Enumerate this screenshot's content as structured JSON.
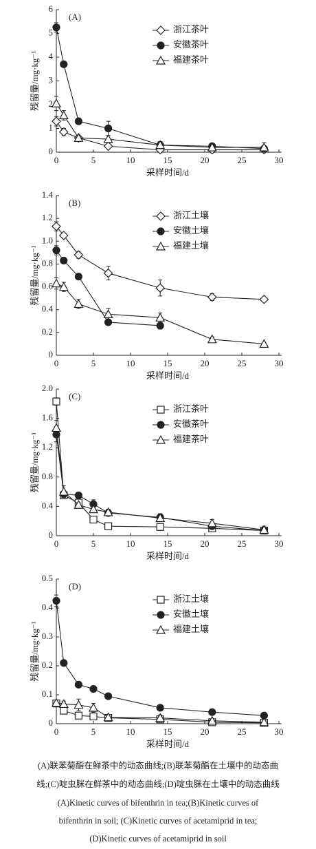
{
  "chart_data": [
    {
      "type": "line",
      "panel_label": "(A)",
      "xlabel": "采样时间/d",
      "ylabel": "残留量/mg·kg⁻¹",
      "x": [
        0,
        1,
        3,
        7,
        14,
        21,
        28
      ],
      "xlim": [
        0,
        30
      ],
      "xticks": [
        0,
        5,
        10,
        15,
        20,
        25,
        30
      ],
      "ylim": [
        0,
        6
      ],
      "yticks": [
        0,
        1,
        2,
        3,
        4,
        5,
        6
      ],
      "series": [
        {
          "name": "浙江茶叶",
          "marker": "diamond",
          "color": "#222222",
          "values": [
            1.3,
            0.85,
            0.6,
            0.25,
            0.1,
            0.1,
            0.1
          ],
          "errors": [
            0.2,
            0.15,
            0.1,
            0.1,
            0.05,
            0.05,
            0.05
          ]
        },
        {
          "name": "安徽茶叶",
          "marker": "circle",
          "color": "#222222",
          "values": [
            5.25,
            3.7,
            1.3,
            1.0,
            0.3,
            0.25,
            0.15
          ],
          "errors": [
            0.2,
            0.1,
            0.1,
            0.3,
            0.15,
            0.1,
            0.1
          ]
        },
        {
          "name": "福建茶叶",
          "marker": "triangle",
          "color": "#222222",
          "values": [
            2.05,
            1.55,
            0.6,
            0.55,
            0.3,
            0.2,
            0.2
          ],
          "errors": [
            0.3,
            0.2,
            0.1,
            0.15,
            0.1,
            0.1,
            0.2
          ]
        }
      ]
    },
    {
      "type": "line",
      "panel_label": "(B)",
      "xlabel": "采样时间/d",
      "ylabel": "残留量/mg·kg⁻¹",
      "x": [
        0,
        1,
        3,
        7,
        14,
        21,
        28
      ],
      "xlim": [
        0,
        30
      ],
      "xticks": [
        0,
        5,
        10,
        15,
        20,
        25,
        30
      ],
      "ylim": [
        0,
        1.4
      ],
      "yticks": [
        0,
        0.2,
        0.4,
        0.6,
        0.8,
        {
          "value": 1,
          "label": "1.0"
        },
        1.2,
        1.4
      ],
      "series": [
        {
          "name": "浙江土壤",
          "marker": "diamond",
          "color": "#222222",
          "values": [
            1.13,
            1.05,
            0.88,
            0.72,
            0.59,
            0.51,
            0.49
          ],
          "errors": [
            0.04,
            0.02,
            0.03,
            0.06,
            0.07,
            0.03,
            0.01
          ]
        },
        {
          "name": "安徽土壤",
          "marker": "circle",
          "color": "#222222",
          "values": [
            0.92,
            0.83,
            0.69,
            0.29,
            0.26,
            null,
            null
          ],
          "errors": [
            0.04,
            0.02,
            0.02,
            0.02,
            0.03,
            null,
            null
          ]
        },
        {
          "name": "福建土壤",
          "marker": "triangle",
          "color": "#222222",
          "values": [
            0.63,
            0.6,
            0.45,
            0.36,
            0.33,
            0.14,
            0.1
          ],
          "errors": [
            0.05,
            0.04,
            0.04,
            0.05,
            0.04,
            0.02,
            0.01
          ]
        }
      ]
    },
    {
      "type": "line",
      "panel_label": "(C)",
      "xlabel": "采样时间/d",
      "ylabel": "残留量/mg·kg⁻¹",
      "x": [
        0,
        1,
        3,
        5,
        7,
        14,
        21,
        28
      ],
      "xlim": [
        0,
        30
      ],
      "xticks": [
        0,
        5,
        10,
        15,
        20,
        25,
        30
      ],
      "ylim": [
        0,
        2
      ],
      "yticks": [
        0,
        0.4,
        0.8,
        1.2,
        1.6,
        {
          "value": 2,
          "label": "2.0"
        }
      ],
      "series": [
        {
          "name": "浙江茶叶",
          "marker": "square",
          "color": "#222222",
          "values": [
            1.83,
            0.55,
            0.45,
            0.22,
            0.13,
            0.12,
            0.1,
            0.07
          ],
          "errors": [
            0.05,
            0.03,
            0.03,
            0.03,
            0.04,
            0.03,
            0.02,
            0.02
          ]
        },
        {
          "name": "安徽茶叶",
          "marker": "circle",
          "color": "#222222",
          "values": [
            1.38,
            0.57,
            0.55,
            0.43,
            0.31,
            0.25,
            0.13,
            0.07
          ],
          "errors": [
            0.1,
            0.05,
            0.03,
            0.06,
            0.03,
            0.05,
            0.04,
            0.04
          ]
        },
        {
          "name": "福建茶叶",
          "marker": "triangle",
          "color": "#222222",
          "values": [
            1.47,
            0.6,
            0.42,
            0.36,
            0.32,
            0.24,
            0.17,
            0.08
          ],
          "errors": [
            0.1,
            0.08,
            0.03,
            0.04,
            0.04,
            0.04,
            0.05,
            0.05
          ]
        }
      ]
    },
    {
      "type": "line",
      "panel_label": "(D)",
      "xlabel": "采样时间/d",
      "ylabel": "残留量/mg·kg⁻¹",
      "x": [
        0,
        1,
        3,
        5,
        7,
        14,
        21,
        28
      ],
      "xlim": [
        0,
        30
      ],
      "xticks": [
        0,
        5,
        10,
        15,
        20,
        25,
        30
      ],
      "ylim": [
        0,
        0.5
      ],
      "yticks": [
        0,
        0.1,
        0.2,
        0.3,
        0.4,
        0.5
      ],
      "series": [
        {
          "name": "浙江土壤",
          "marker": "square",
          "color": "#222222",
          "values": [
            0.07,
            0.045,
            0.028,
            0.025,
            0.02,
            0.015,
            0.005,
            0.003
          ],
          "errors": [
            0.01,
            0.01,
            0.005,
            0.005,
            0.005,
            0.005,
            0.005,
            0.005
          ]
        },
        {
          "name": "安徽土壤",
          "marker": "circle",
          "color": "#222222",
          "values": [
            0.425,
            0.21,
            0.135,
            0.12,
            0.095,
            0.055,
            0.04,
            0.028
          ],
          "errors": [
            0.02,
            0.005,
            0.005,
            0.01,
            0.005,
            0.005,
            0.008,
            0.01
          ]
        },
        {
          "name": "福建土壤",
          "marker": "triangle",
          "color": "#222222",
          "values": [
            0.072,
            0.068,
            0.065,
            0.055,
            0.022,
            0.02,
            0.01,
            0.005
          ],
          "errors": [
            0.01,
            0.01,
            0.02,
            0.015,
            0.005,
            0.01,
            0.005,
            0.005
          ]
        }
      ]
    }
  ],
  "caption": [
    "(A)联苯菊酯在鲜茶中的动态曲线;(B)联苯菊酯在土壤中的动态曲",
    "线;(C)啶虫脒在鲜茶中的动态曲线;(D)啶虫脒在土壤中的动态曲线",
    "(A)Kinetic curves of bifenthrin in tea;(B)Kinetic curves of",
    "bifenthrin in soil; (C)Kinetic curves of acetamiprid in tea;",
    "(D)Kinetic curves of acetamiprid in soil"
  ]
}
